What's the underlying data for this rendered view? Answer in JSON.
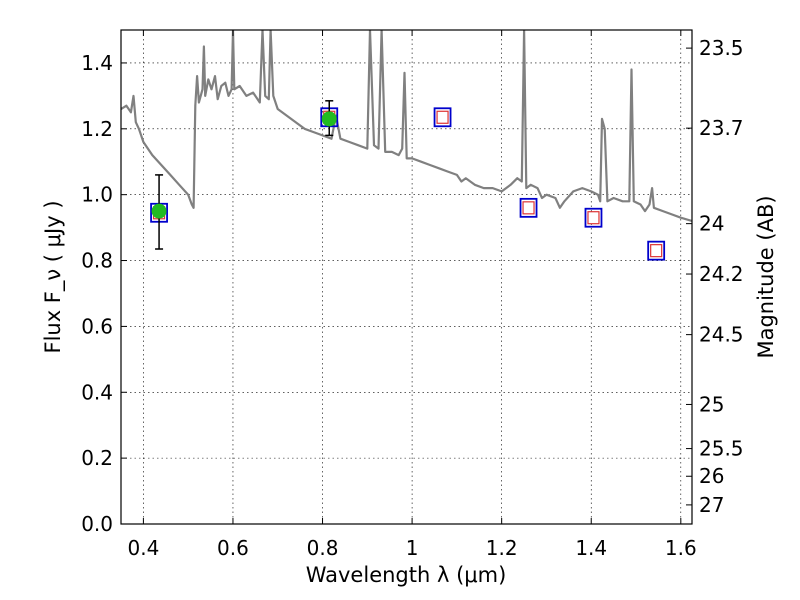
{
  "chart_data": {
    "type": "line",
    "xlabel": "Wavelength  λ (μm)",
    "ylabel_left": "Flux  F_ν  ( μJy )",
    "ylabel_right": "Magnitude (AB)",
    "xlim": [
      0.35,
      1.625
    ],
    "ylim": [
      0.0,
      1.5
    ],
    "grid": true,
    "x_ticks": [
      {
        "value": 0.4,
        "label": "0.4"
      },
      {
        "value": 0.6,
        "label": "0.6"
      },
      {
        "value": 0.8,
        "label": "0.8"
      },
      {
        "value": 1.0,
        "label": "1"
      },
      {
        "value": 1.2,
        "label": "1.2"
      },
      {
        "value": 1.4,
        "label": "1.4"
      },
      {
        "value": 1.6,
        "label": "1.6"
      }
    ],
    "y_ticks": [
      {
        "value": 0.0,
        "label": "0.0"
      },
      {
        "value": 0.2,
        "label": "0.2"
      },
      {
        "value": 0.4,
        "label": "0.4"
      },
      {
        "value": 0.6,
        "label": "0.6"
      },
      {
        "value": 0.8,
        "label": "0.8"
      },
      {
        "value": 1.0,
        "label": "1.0"
      },
      {
        "value": 1.2,
        "label": "1.2"
      },
      {
        "value": 1.4,
        "label": "1.4"
      }
    ],
    "right_ticks": [
      {
        "label": "23.5",
        "flux": 1.445
      },
      {
        "label": "23.7",
        "flux": 1.202
      },
      {
        "label": "24",
        "flux": 0.912
      },
      {
        "label": "24.2",
        "flux": 0.759
      },
      {
        "label": "24.5",
        "flux": 0.575
      },
      {
        "label": "25",
        "flux": 0.363
      },
      {
        "label": "25.5",
        "flux": 0.229
      },
      {
        "label": "26",
        "flux": 0.145
      },
      {
        "label": "27",
        "flux": 0.058
      }
    ],
    "colors": {
      "model": "#808080",
      "observed_fill": "#22bb22",
      "box_outer": "#0000cc",
      "box_inner": "#dd3333",
      "errorbar": "#000000"
    },
    "model_spectrum": [
      [
        0.35,
        1.26
      ],
      [
        0.362,
        1.27
      ],
      [
        0.372,
        1.25
      ],
      [
        0.378,
        1.3
      ],
      [
        0.383,
        1.22
      ],
      [
        0.39,
        1.2
      ],
      [
        0.4,
        1.16
      ],
      [
        0.42,
        1.12
      ],
      [
        0.44,
        1.09
      ],
      [
        0.46,
        1.06
      ],
      [
        0.48,
        1.03
      ],
      [
        0.5,
        1.0
      ],
      [
        0.508,
        0.97
      ],
      [
        0.512,
        0.96
      ],
      [
        0.516,
        1.27
      ],
      [
        0.52,
        1.36
      ],
      [
        0.524,
        1.28
      ],
      [
        0.528,
        1.3
      ],
      [
        0.532,
        1.32
      ],
      [
        0.535,
        1.45
      ],
      [
        0.538,
        1.3
      ],
      [
        0.545,
        1.35
      ],
      [
        0.552,
        1.32
      ],
      [
        0.56,
        1.36
      ],
      [
        0.566,
        1.29
      ],
      [
        0.574,
        1.33
      ],
      [
        0.583,
        1.34
      ],
      [
        0.59,
        1.3
      ],
      [
        0.597,
        1.32
      ],
      [
        0.6,
        1.5
      ],
      [
        0.603,
        1.32
      ],
      [
        0.615,
        1.33
      ],
      [
        0.63,
        1.3
      ],
      [
        0.645,
        1.31
      ],
      [
        0.66,
        1.28
      ],
      [
        0.666,
        1.5
      ],
      [
        0.672,
        1.3
      ],
      [
        0.68,
        1.29
      ],
      [
        0.684,
        1.5
      ],
      [
        0.69,
        1.3
      ],
      [
        0.7,
        1.26
      ],
      [
        0.72,
        1.24
      ],
      [
        0.74,
        1.22
      ],
      [
        0.76,
        1.2
      ],
      [
        0.78,
        1.19
      ],
      [
        0.8,
        1.18
      ],
      [
        0.82,
        1.17
      ],
      [
        0.83,
        1.24
      ],
      [
        0.84,
        1.17
      ],
      [
        0.86,
        1.16
      ],
      [
        0.88,
        1.15
      ],
      [
        0.9,
        1.14
      ],
      [
        0.906,
        1.5
      ],
      [
        0.915,
        1.15
      ],
      [
        0.925,
        1.14
      ],
      [
        0.932,
        1.5
      ],
      [
        0.94,
        1.13
      ],
      [
        0.955,
        1.13
      ],
      [
        0.97,
        1.12
      ],
      [
        0.978,
        1.14
      ],
      [
        0.983,
        1.37
      ],
      [
        0.988,
        1.11
      ],
      [
        1.0,
        1.11
      ],
      [
        1.02,
        1.1
      ],
      [
        1.04,
        1.09
      ],
      [
        1.06,
        1.08
      ],
      [
        1.08,
        1.07
      ],
      [
        1.1,
        1.06
      ],
      [
        1.11,
        1.04
      ],
      [
        1.12,
        1.05
      ],
      [
        1.14,
        1.03
      ],
      [
        1.16,
        1.02
      ],
      [
        1.18,
        1.02
      ],
      [
        1.2,
        1.01
      ],
      [
        1.22,
        1.03
      ],
      [
        1.235,
        1.05
      ],
      [
        1.245,
        1.04
      ],
      [
        1.25,
        1.5
      ],
      [
        1.255,
        1.02
      ],
      [
        1.265,
        1.03
      ],
      [
        1.28,
        1.02
      ],
      [
        1.29,
        0.99
      ],
      [
        1.3,
        1.0
      ],
      [
        1.32,
        0.99
      ],
      [
        1.33,
        0.96
      ],
      [
        1.34,
        0.98
      ],
      [
        1.36,
        1.01
      ],
      [
        1.38,
        1.02
      ],
      [
        1.4,
        1.01
      ],
      [
        1.415,
        1.0
      ],
      [
        1.42,
        0.98
      ],
      [
        1.424,
        1.23
      ],
      [
        1.43,
        1.2
      ],
      [
        1.436,
        0.98
      ],
      [
        1.45,
        0.99
      ],
      [
        1.47,
        0.98
      ],
      [
        1.485,
        0.98
      ],
      [
        1.49,
        1.38
      ],
      [
        1.495,
        0.98
      ],
      [
        1.51,
        0.97
      ],
      [
        1.52,
        0.95
      ],
      [
        1.53,
        0.97
      ],
      [
        1.536,
        1.02
      ],
      [
        1.54,
        0.96
      ],
      [
        1.56,
        0.95
      ],
      [
        1.58,
        0.94
      ],
      [
        1.6,
        0.93
      ],
      [
        1.625,
        0.92
      ]
    ],
    "observed_points": [
      {
        "x": 0.435,
        "y": 0.95,
        "yerr_low": 0.115,
        "yerr_high": 0.11
      },
      {
        "x": 0.815,
        "y": 1.23,
        "yerr_low": 0.05,
        "yerr_high": 0.055
      }
    ],
    "model_points": [
      {
        "x": 0.435,
        "y": 0.945
      },
      {
        "x": 0.815,
        "y": 1.235
      },
      {
        "x": 1.068,
        "y": 1.235
      },
      {
        "x": 1.26,
        "y": 0.96
      },
      {
        "x": 1.405,
        "y": 0.93
      },
      {
        "x": 1.545,
        "y": 0.83
      }
    ]
  }
}
